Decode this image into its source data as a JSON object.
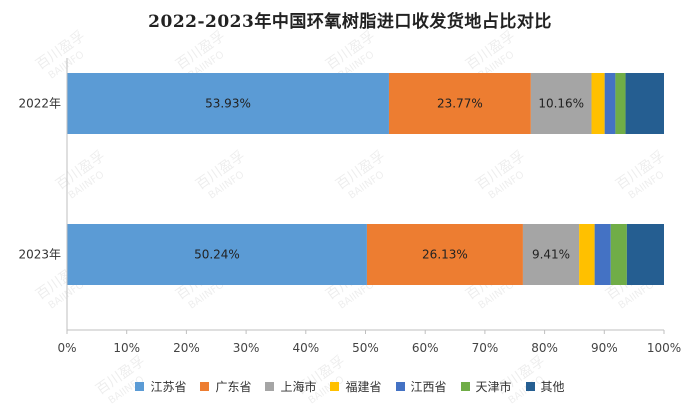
{
  "chart_data": {
    "type": "bar",
    "orientation": "horizontal",
    "stacked": true,
    "title": "2022-2023年中国环氧树脂进口收发货地占比对比",
    "categories": [
      "2022年",
      "2023年"
    ],
    "xlim": [
      0,
      100
    ],
    "xticks": [
      "0%",
      "10%",
      "20%",
      "30%",
      "40%",
      "50%",
      "60%",
      "70%",
      "80%",
      "90%",
      "100%"
    ],
    "grid": false,
    "legend_position": "bottom",
    "series": [
      {
        "name": "江苏省",
        "color": "#5B9BD5",
        "values": [
          53.93,
          50.24
        ],
        "labels": [
          "53.93%",
          "50.24%"
        ]
      },
      {
        "name": "广东省",
        "color": "#ED7D31",
        "values": [
          23.77,
          26.13
        ],
        "labels": [
          "23.77%",
          "26.13%"
        ]
      },
      {
        "name": "上海市",
        "color": "#A5A5A5",
        "values": [
          10.16,
          9.41
        ],
        "labels": [
          "10.16%",
          "9.41%"
        ]
      },
      {
        "name": "福建省",
        "color": "#FFC000",
        "values": [
          2.2,
          2.6
        ],
        "labels": [
          "",
          ""
        ]
      },
      {
        "name": "江西省",
        "color": "#4472C4",
        "values": [
          1.8,
          2.7
        ],
        "labels": [
          "",
          ""
        ]
      },
      {
        "name": "天津市",
        "color": "#70AD47",
        "values": [
          1.7,
          2.7
        ],
        "labels": [
          "",
          ""
        ]
      },
      {
        "name": "其他",
        "color": "#255E91",
        "values": [
          6.44,
          6.22
        ],
        "labels": [
          "",
          ""
        ]
      }
    ]
  },
  "watermark": {
    "cn": "百川盈孚",
    "en": "BAIINFO"
  }
}
